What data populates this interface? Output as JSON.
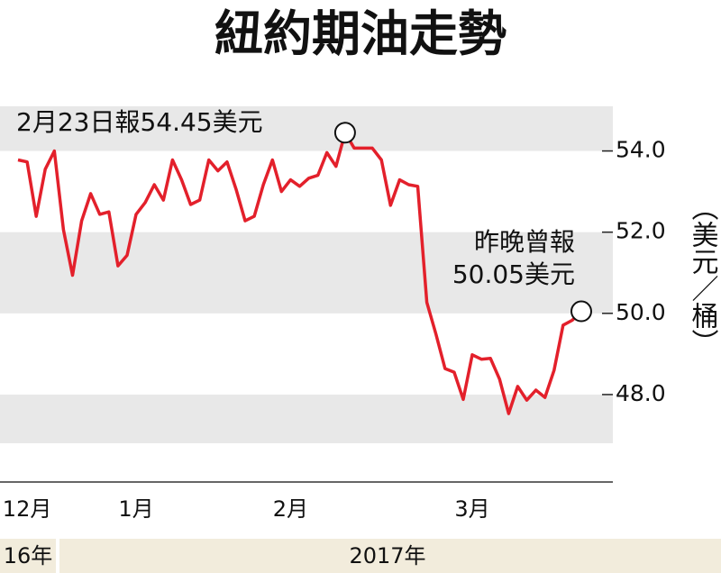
{
  "chart_data": {
    "type": "line",
    "title": "紐約期油走勢",
    "y_axis_label": "（美元／桶）",
    "categories": [
      null,
      "12月",
      null,
      null,
      null,
      null,
      null,
      null,
      null,
      null,
      null,
      null,
      null,
      "1月",
      null,
      null,
      null,
      null,
      null,
      null,
      null,
      null,
      null,
      null,
      null,
      null,
      null,
      null,
      null,
      null,
      "2月",
      null,
      null,
      null,
      null,
      null,
      null,
      null,
      null,
      null,
      null,
      null,
      null,
      null,
      null,
      null,
      null,
      null,
      null,
      null,
      "3月",
      null,
      null,
      null,
      null,
      null,
      null,
      null,
      null,
      null,
      null,
      null,
      null
    ],
    "series": [
      {
        "color": "#e3202b",
        "values": [
          53.78,
          53.73,
          52.39,
          53.55,
          54.0,
          52.06,
          50.94,
          52.28,
          52.95,
          52.44,
          52.5,
          51.17,
          51.43,
          52.44,
          52.73,
          53.17,
          52.79,
          53.78,
          53.29,
          52.68,
          52.79,
          53.78,
          53.51,
          53.73,
          53.06,
          52.28,
          52.39,
          53.17,
          53.78,
          53.0,
          53.29,
          53.13,
          53.33,
          53.4,
          53.96,
          53.62,
          54.45,
          54.07,
          54.07,
          54.07,
          53.78,
          52.66,
          53.29,
          53.17,
          53.13,
          50.27,
          49.49,
          48.64,
          48.55,
          47.88,
          48.98,
          48.87,
          48.89,
          48.38,
          47.53,
          48.2,
          47.86,
          48.11,
          47.93,
          48.6,
          49.71,
          49.83,
          50.05
        ]
      }
    ],
    "ylim": [
      46.8,
      55.1
    ],
    "yticks": [
      {
        "value": 48,
        "label": "48.0"
      },
      {
        "value": 50,
        "label": "50.0"
      },
      {
        "value": 52,
        "label": "52.0"
      },
      {
        "value": 54,
        "label": "54.0"
      }
    ],
    "annotations": [
      {
        "index": 36,
        "lines": [
          "2月23日報54.45美元"
        ]
      },
      {
        "index": 62,
        "lines": [
          "昨晚曾報",
          "50.05美元"
        ]
      }
    ],
    "year_labels": [
      "16年",
      "2017年"
    ]
  }
}
